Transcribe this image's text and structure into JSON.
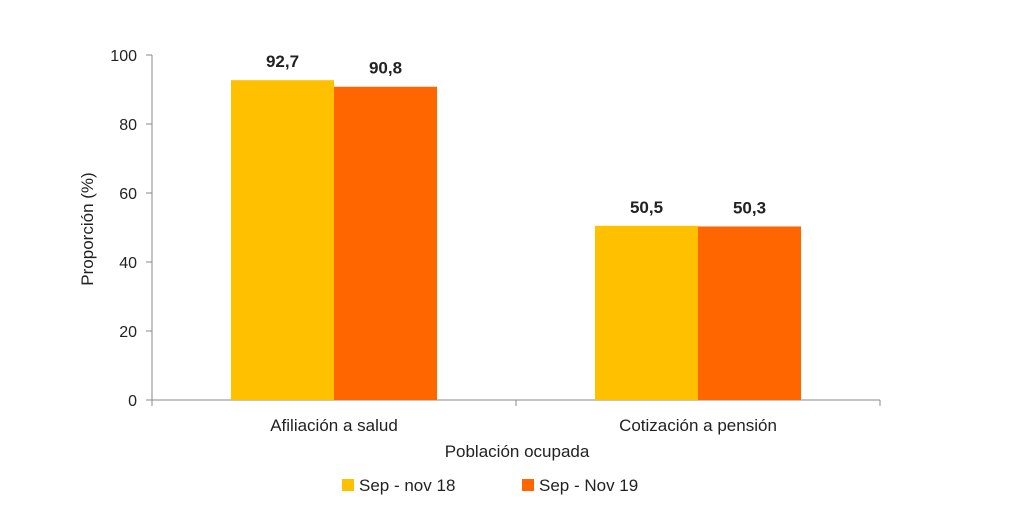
{
  "chart_data": {
    "type": "bar",
    "title": "",
    "xlabel": "Población ocupada",
    "ylabel": "Proporción (%)",
    "ylim": [
      0,
      100
    ],
    "yticks": [
      0,
      20,
      40,
      60,
      80,
      100
    ],
    "categories": [
      "Afiliación a salud",
      "Cotización a pensión"
    ],
    "series": [
      {
        "name": "Sep - nov 18",
        "color": "#FFC000",
        "values": [
          92.7,
          50.5
        ],
        "labels": [
          "92,7",
          "50,5"
        ]
      },
      {
        "name": "Sep - Nov 19",
        "color": "#FF6600",
        "values": [
          90.8,
          50.3
        ],
        "labels": [
          "90,8",
          "50,3"
        ]
      }
    ],
    "grid": false,
    "legend_position": "bottom"
  }
}
